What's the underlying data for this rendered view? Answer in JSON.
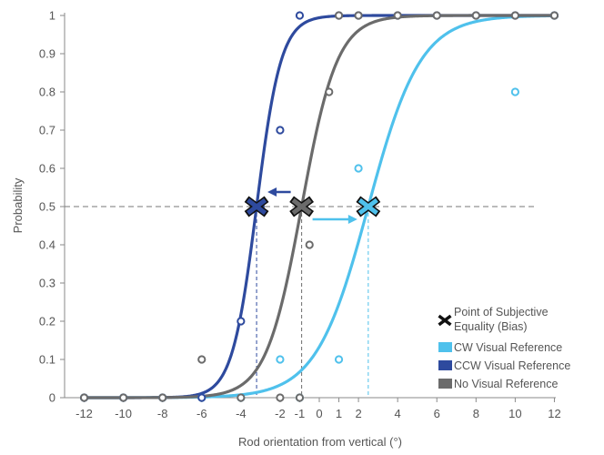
{
  "chart_data": {
    "type": "scatter",
    "xlabel": "Rod orientation from vertical (°)",
    "ylabel": "Probability",
    "xlim": [
      -13,
      13
    ],
    "ylim": [
      0,
      1
    ],
    "x_ticks": [
      -12,
      -10,
      -8,
      -6,
      -4,
      -2,
      -1,
      0,
      1,
      2,
      4,
      6,
      8,
      10,
      12
    ],
    "y_ticks": [
      0,
      0.1,
      0.2,
      0.3,
      0.4,
      0.5,
      0.6,
      0.7,
      0.8,
      0.9,
      1
    ],
    "y_tick_labels": [
      "0",
      "0.1",
      "0.2",
      "0.3",
      "0.4",
      "0.5",
      "0.6",
      "0.7",
      "0.8",
      "0.9",
      "1"
    ],
    "reference_line_y": 0.5,
    "grid": false,
    "legend_position": "bottom-right",
    "series": [
      {
        "name": "CW Visual Reference",
        "color": "#4fc1ec",
        "pse": 2.5,
        "slope": 0.75,
        "points": [
          [
            -12,
            0
          ],
          [
            -10,
            0
          ],
          [
            -8,
            0
          ],
          [
            -6,
            0
          ],
          [
            -4,
            0
          ],
          [
            -2,
            0.1
          ],
          [
            -1,
            0
          ],
          [
            1,
            0.1
          ],
          [
            2,
            0.6
          ],
          [
            10,
            0.8
          ],
          [
            12,
            1
          ]
        ]
      },
      {
        "name": "CCW Visual Reference",
        "color": "#2e4a9e",
        "pse": -3.2,
        "slope": 1.6,
        "points": [
          [
            -12,
            0
          ],
          [
            -10,
            0
          ],
          [
            -8,
            0
          ],
          [
            -6,
            0
          ],
          [
            -4,
            0.2
          ],
          [
            -3,
            0.5
          ],
          [
            -2,
            0.7
          ],
          [
            -1,
            1
          ],
          [
            1,
            1
          ],
          [
            2,
            1
          ],
          [
            4,
            1
          ],
          [
            6,
            1
          ],
          [
            8,
            1
          ],
          [
            10,
            1
          ],
          [
            12,
            1
          ]
        ]
      },
      {
        "name": "No Visual Reference",
        "color": "#6b6b6b",
        "pse": -0.9,
        "slope": 1.1,
        "points": [
          [
            -12,
            0
          ],
          [
            -10,
            0
          ],
          [
            -8,
            0
          ],
          [
            -6,
            0.1
          ],
          [
            -4,
            0
          ],
          [
            -2,
            0
          ],
          [
            -1,
            0
          ],
          [
            -0.5,
            0.4
          ],
          [
            0.5,
            0.8
          ],
          [
            1,
            1
          ],
          [
            2,
            1
          ],
          [
            4,
            1
          ],
          [
            6,
            1
          ],
          [
            8,
            1
          ],
          [
            10,
            1
          ],
          [
            12,
            1
          ]
        ]
      }
    ],
    "pse_legend_label_lines": [
      "Point of Subjective",
      "Equality (Bias)"
    ],
    "pse_marker_color": "#111111"
  }
}
